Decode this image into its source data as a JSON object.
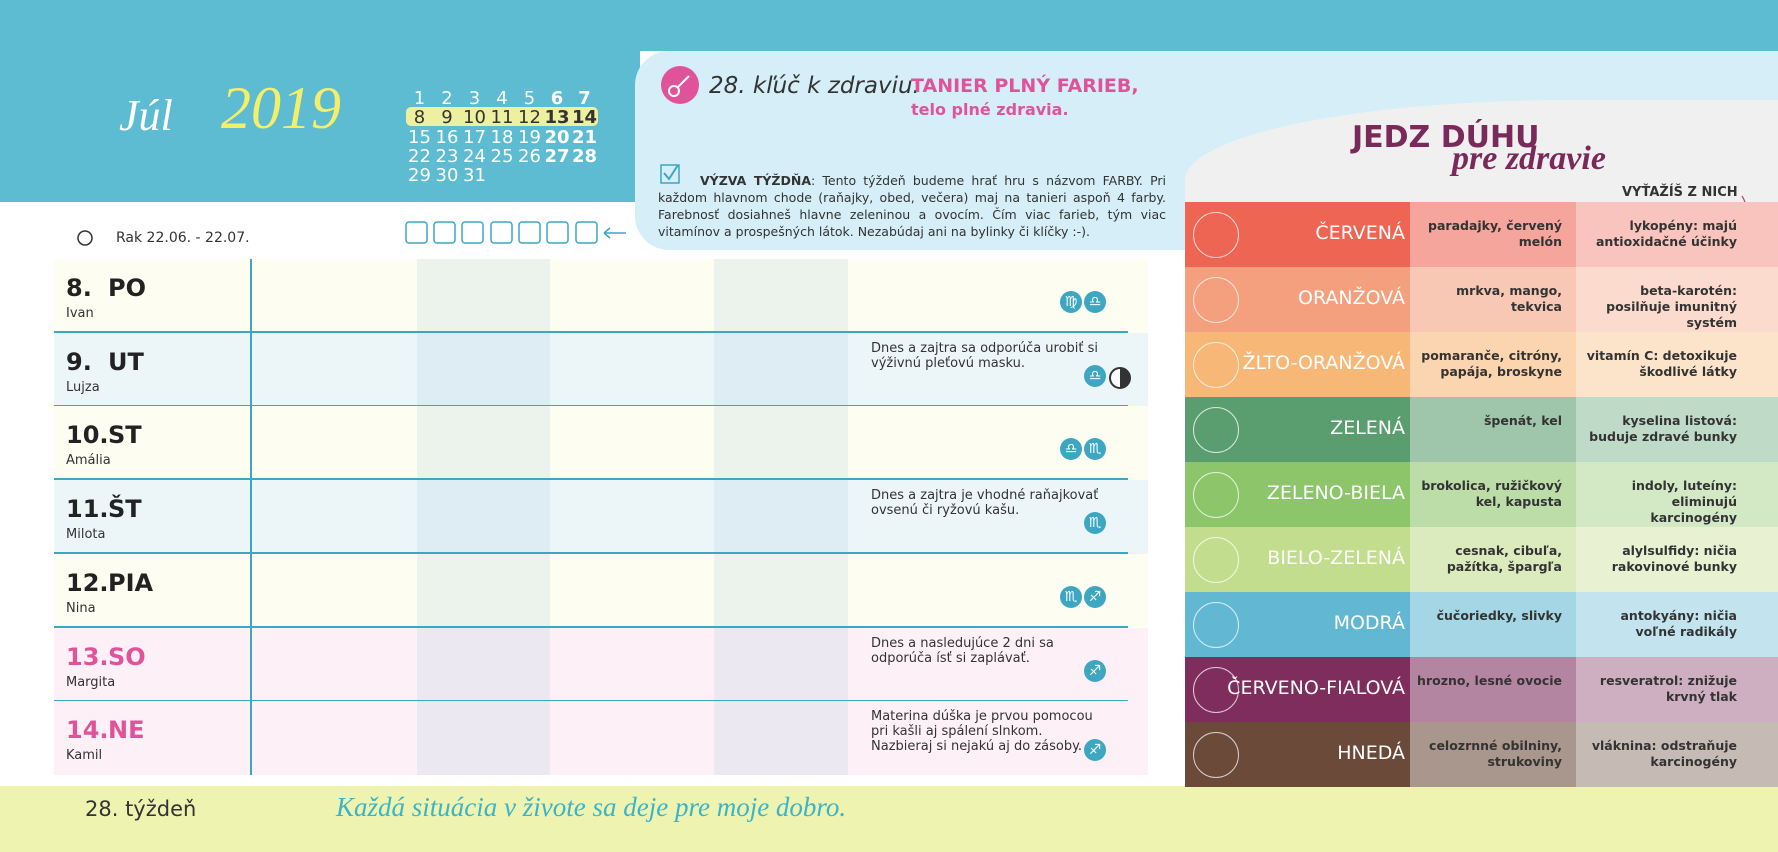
{
  "header": {
    "month": "Júl",
    "year": "2019",
    "calendar": [
      [
        "1",
        "2",
        "3",
        "4",
        "5",
        "6",
        "7"
      ],
      [
        "8",
        "9",
        "10",
        "11",
        "12",
        "13",
        "14"
      ],
      [
        "15",
        "16",
        "17",
        "18",
        "19",
        "20",
        "21"
      ],
      [
        "22",
        "23",
        "24",
        "25",
        "26",
        "27",
        "28"
      ],
      [
        "29",
        "30",
        "31"
      ]
    ],
    "zodiac": "Rak 22.06. - 22.07."
  },
  "key": {
    "label": "28. kľúč k zdraviu:",
    "headline": "TANIER PLNÝ FARIEB,",
    "subline": "telo plné zdravia."
  },
  "challenge": {
    "label": "VÝZVA TÝŽDŇA",
    "text": ": Tento týždeň budeme hrať hru s názvom FARBY. Pri každom hlavnom chode (raňajky, obed, večera) maj na tanieri aspoň 4 farby. Farebnosť dosiahneš hlavne zeleninou a ovocím. Čím viac farieb, tým viac vitamínov a prospešných látok. Nezabúdaj ani na bylinky či klíčky :-)."
  },
  "days": [
    {
      "num": "8.",
      "day": "PO",
      "name": "Ivan",
      "note": "",
      "signs": [
        "♍",
        "♎"
      ]
    },
    {
      "num": "9.",
      "day": "UT",
      "name": "Lujza",
      "note": "Dnes a zajtra sa odporúča urobiť si výživnú pleťovú masku.",
      "signs": [
        "♎"
      ]
    },
    {
      "num": "10.",
      "day": "ST",
      "name": "Amália",
      "note": "",
      "signs": [
        "♎",
        "♏"
      ]
    },
    {
      "num": "11.",
      "day": "ŠT",
      "name": "Milota",
      "note": "Dnes a zajtra je vhodné raňajkovať ovsenú či ryžovú kašu.",
      "signs": [
        "♏"
      ]
    },
    {
      "num": "12.",
      "day": "PIA",
      "name": "Nina",
      "note": "",
      "signs": [
        "♏",
        "♐"
      ]
    },
    {
      "num": "13.",
      "day": "SO",
      "name": "Margita",
      "note": "Dnes a nasledujúce 2 dni sa odporúča ísť si zaplávať.",
      "signs": [
        "♐"
      ]
    },
    {
      "num": "14.",
      "day": "NE",
      "name": "Kamil",
      "note": "Materina dúška je prvou pomocou pri kašli aj spálení slnkom. Nazbieraj si nejakú aj do zásoby.",
      "signs": [
        "♐"
      ]
    }
  ],
  "rainbow": {
    "title": "JEDZ DÚHU",
    "subtitle": "pre zdravie",
    "column_header": "VYŤAŽÍŠ Z NICH",
    "rows": [
      {
        "color": "ČERVENÁ",
        "foods": "paradajky, červený melón",
        "benefit": "lykopény: majú antioxidačné účinky"
      },
      {
        "color": "ORANŽOVÁ",
        "foods": "mrkva, mango, tekvica",
        "benefit": "beta-karotén: posilňuje imunitný systém"
      },
      {
        "color": "ŽLTO-ORANŽOVÁ",
        "foods": "pomaranče, citróny, papája, broskyne",
        "benefit": "vitamín C: detoxikuje škodlivé látky"
      },
      {
        "color": "ZELENÁ",
        "foods": "špenát, kel",
        "benefit": "kyselina listová: buduje zdravé bunky"
      },
      {
        "color": "ZELENO-BIELA",
        "foods": "brokolica, ružičkový kel, kapusta",
        "benefit": "indoly, luteíny: eliminujú karcinogény"
      },
      {
        "color": "BIELO-ZELENÁ",
        "foods": "cesnak, cibuľa, pažítka, špargľa",
        "benefit": "alylsulfidy: ničia rakovinové bunky"
      },
      {
        "color": "MODRÁ",
        "foods": "čučoriedky, slivky",
        "benefit": "antokyány: ničia voľné radikály"
      },
      {
        "color": "ČERVENO-FIALOVÁ",
        "foods": "hrozno, lesné ovocie",
        "benefit": "resveratrol: znižuje krvný tlak"
      },
      {
        "color": "HNEDÁ",
        "foods": "celozrnné obilniny, strukoviny",
        "benefit": "vláknina: odstraňuje karcinogény"
      }
    ]
  },
  "footer": {
    "week": "28. týždeň",
    "motto": "Každá situácia v živote sa deje pre moje dobro."
  }
}
